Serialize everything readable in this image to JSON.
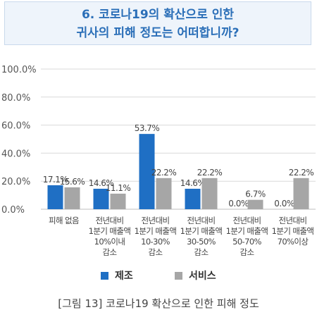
{
  "title_lines": [
    "6. 코로나19의 확산으로 인한",
    "귀사의 피해 정도는 어떠합니까?"
  ],
  "caption": "[그림 13] 코로나19 확산으로 인한 피해 정도",
  "colors": {
    "manufacturing": "#1f6fc4",
    "service": "#a6a6a6",
    "title": "#2b6fb8",
    "grid": "#d9d9d9"
  },
  "chart_data": {
    "type": "bar",
    "ylim": [
      0,
      100
    ],
    "yticks": [
      "0.0%",
      "20.0%",
      "40.0%",
      "60.0%",
      "80.0%",
      "100.0%"
    ],
    "categories": [
      [
        "피해 없음"
      ],
      [
        "전년대비",
        "1분기 매출액",
        "10%이내",
        "감소"
      ],
      [
        "전년대비",
        "1분기 매출액",
        "10-30%",
        "감소"
      ],
      [
        "전년대비",
        "1분기 매출액",
        "30-50%",
        "감소"
      ],
      [
        "전년대비",
        "1분기 매출액",
        "50-70%",
        "감소"
      ],
      [
        "전년대비",
        "1분기 매출액",
        "70%이상"
      ]
    ],
    "series": [
      {
        "name": "제조",
        "values": [
          17.1,
          14.6,
          53.7,
          14.6,
          0.0,
          0.0
        ],
        "labels": [
          "17.1%",
          "14.6%",
          "53.7%",
          "14.6%",
          "0.0%",
          "0.0%"
        ]
      },
      {
        "name": "서비스",
        "values": [
          15.6,
          11.1,
          22.2,
          22.2,
          6.7,
          22.2
        ],
        "labels": [
          "15.6%",
          "11.1%",
          "22.2%",
          "22.2%",
          "6.7%",
          "22.2%"
        ]
      }
    ],
    "legend": "bottom"
  }
}
